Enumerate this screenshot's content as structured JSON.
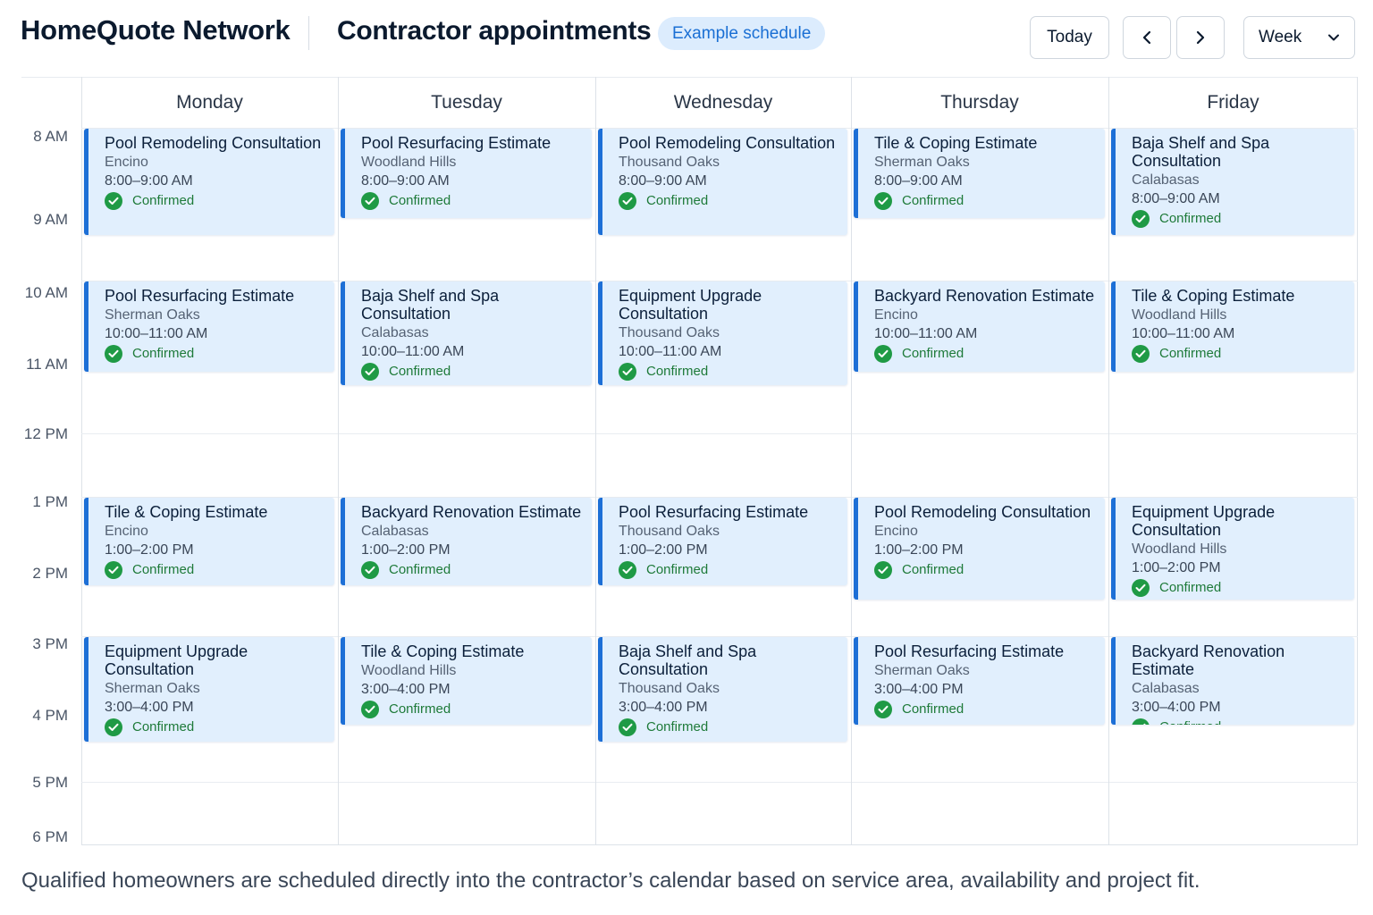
{
  "header": {
    "brand": "HomeQuote Network",
    "title": "Contractor appointments",
    "badge": "Example schedule",
    "today_label": "Today",
    "view_select": "Week"
  },
  "days": [
    "Monday",
    "Tuesday",
    "Wednesday",
    "Thursday",
    "Friday"
  ],
  "times": [
    "8 AM",
    "9 AM",
    "10 AM",
    "11 AM",
    "12 PM",
    "1 PM",
    "2 PM",
    "3 PM",
    "4 PM",
    "5 PM",
    "6 PM"
  ],
  "colors": {
    "accent": "#1d6fd6",
    "event_bg": "#e1effd",
    "confirmed": "#1f9a45",
    "badge_bg": "#dcecfd"
  },
  "events": [
    [
      {
        "title": "Pool Remodeling Consultation",
        "location": "Encino",
        "time": "8:00–9:00 AM",
        "status": "Confirmed"
      },
      {
        "title": "Pool Resurfacing Estimate",
        "location": "Sherman Oaks",
        "time": "10:00–11:00 AM",
        "status": "Confirmed"
      },
      {
        "title": "Tile & Coping Estimate",
        "location": "Encino",
        "time": "1:00–2:00 PM",
        "status": "Confirmed"
      },
      {
        "title": "Equipment Upgrade Consultation",
        "location": "Sherman Oaks",
        "time": "3:00–4:00 PM",
        "status": "Confirmed"
      }
    ],
    [
      {
        "title": "Pool Resurfacing Estimate",
        "location": "Woodland Hills",
        "time": "8:00–9:00 AM",
        "status": "Confirmed"
      },
      {
        "title": "Baja Shelf and Spa Consultation",
        "location": "Calabasas",
        "time": "10:00–11:00 AM",
        "status": "Confirmed"
      },
      {
        "title": "Backyard Renovation Estimate",
        "location": "Calabasas",
        "time": "1:00–2:00 PM",
        "status": "Confirmed"
      },
      {
        "title": "Tile & Coping Estimate",
        "location": "Woodland Hills",
        "time": "3:00–4:00 PM",
        "status": "Confirmed"
      }
    ],
    [
      {
        "title": "Pool Remodeling Consultation",
        "location": "Thousand Oaks",
        "time": "8:00–9:00 AM",
        "status": "Confirmed"
      },
      {
        "title": "Equipment Upgrade Consultation",
        "location": "Thousand Oaks",
        "time": "10:00–11:00 AM",
        "status": "Confirmed"
      },
      {
        "title": "Pool Resurfacing Estimate",
        "location": "Thousand Oaks",
        "time": "1:00–2:00 PM",
        "status": "Confirmed"
      },
      {
        "title": "Baja Shelf and Spa Consultation",
        "location": "Thousand Oaks",
        "time": "3:00–4:00 PM",
        "status": "Confirmed"
      }
    ],
    [
      {
        "title": "Tile & Coping Estimate",
        "location": "Sherman Oaks",
        "time": "8:00–9:00 AM",
        "status": "Confirmed"
      },
      {
        "title": "Backyard Renovation Estimate",
        "location": "Encino",
        "time": "10:00–11:00 AM",
        "status": "Confirmed"
      },
      {
        "title": "Pool Remodeling Consultation",
        "location": "Encino",
        "time": "1:00–2:00 PM",
        "status": "Confirmed"
      },
      {
        "title": "Pool Resurfacing Estimate",
        "location": "Sherman Oaks",
        "time": "3:00–4:00 PM",
        "status": "Confirmed"
      }
    ],
    [
      {
        "title": "Baja Shelf and Spa Consultation",
        "location": "Calabasas",
        "time": "8:00–9:00 AM",
        "status": "Confirmed"
      },
      {
        "title": "Tile & Coping Estimate",
        "location": "Woodland Hills",
        "time": "10:00–11:00 AM",
        "status": "Confirmed"
      },
      {
        "title": "Equipment Upgrade Consultation",
        "location": "Woodland Hills",
        "time": "1:00–2:00 PM",
        "status": "Confirmed"
      },
      {
        "title": "Backyard Renovation Estimate",
        "location": "Calabasas",
        "time": "3:00–4:00 PM",
        "status": "Confirmed"
      }
    ]
  ],
  "footer": "Qualified homeowners are scheduled directly into the contractor’s calendar based on service area, availability and project fit."
}
